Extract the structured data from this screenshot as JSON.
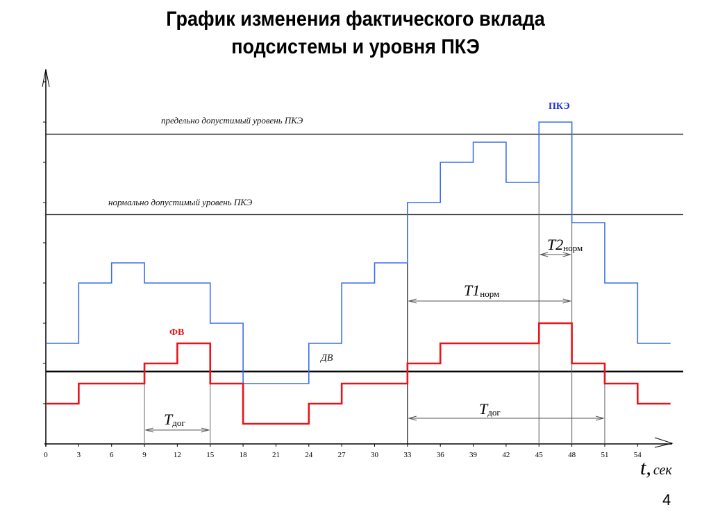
{
  "slide": {
    "title_line1": "График изменения фактического вклада",
    "title_line2": "подсистемы и уровня ПКЭ",
    "page_number": "4"
  },
  "labels": {
    "limit_level": "предельно допустимый уровень ПКЭ",
    "normal_level": "нормально допустимый уровень ПКЭ",
    "pke": "ПКЭ",
    "fv": "ФВ",
    "dv": "ДВ",
    "t_dog": "T",
    "t_dog_sub": "дог",
    "t1": "T1",
    "t1_sub": "норм",
    "t2": "T2",
    "t2_sub": "норм",
    "x_axis": "t,",
    "x_axis_unit": "сек"
  },
  "colors": {
    "pke": "#3a6ee8",
    "fv": "#e8141a",
    "axis": "#000000",
    "pke_label": "#1a2fd6"
  },
  "chart_data": {
    "type": "line",
    "step": true,
    "title": "График изменения фактического вклада подсистемы и уровня ПКЭ",
    "xlabel": "t, сек",
    "ylabel": "",
    "x_ticks": [
      0,
      3,
      6,
      9,
      12,
      15,
      18,
      21,
      24,
      27,
      30,
      33,
      36,
      39,
      42,
      45,
      48,
      51,
      54
    ],
    "xlim": [
      0,
      57
    ],
    "ylim": [
      0,
      9
    ],
    "grid": false,
    "series": [
      {
        "name": "ПКЭ",
        "color": "#3a6ee8",
        "x_breaks": [
          0,
          3,
          6,
          9,
          15,
          18,
          24,
          27,
          30,
          33,
          36,
          39,
          42,
          45,
          48,
          51,
          54,
          57
        ],
        "values": [
          2.5,
          4,
          4.5,
          4,
          3,
          1.5,
          2.5,
          4,
          4.5,
          6,
          7,
          7.5,
          6.5,
          8,
          5.5,
          4,
          2.5
        ]
      },
      {
        "name": "ФВ",
        "color": "#e8141a",
        "x_breaks": [
          0,
          3,
          9,
          12,
          15,
          18,
          24,
          27,
          33,
          36,
          45,
          48,
          51,
          54,
          57
        ],
        "values": [
          1,
          1.5,
          2,
          2.5,
          1.5,
          0.5,
          1,
          1.5,
          2,
          2.5,
          3,
          2,
          1.5,
          1
        ]
      }
    ],
    "reference_lines": [
      {
        "name": "предельно допустимый уровень ПКЭ",
        "y": 7.7
      },
      {
        "name": "нормально допустимый уровень ПКЭ",
        "y": 5.7
      },
      {
        "name": "ДВ",
        "y": 1.8
      }
    ],
    "intervals": [
      {
        "name": "Tдог",
        "from": 9,
        "to": 15
      },
      {
        "name": "T1норм",
        "from": 33,
        "to": 48
      },
      {
        "name": "T2норм",
        "from": 45,
        "to": 48
      },
      {
        "name": "Tдог",
        "from": 33,
        "to": 51
      }
    ]
  }
}
